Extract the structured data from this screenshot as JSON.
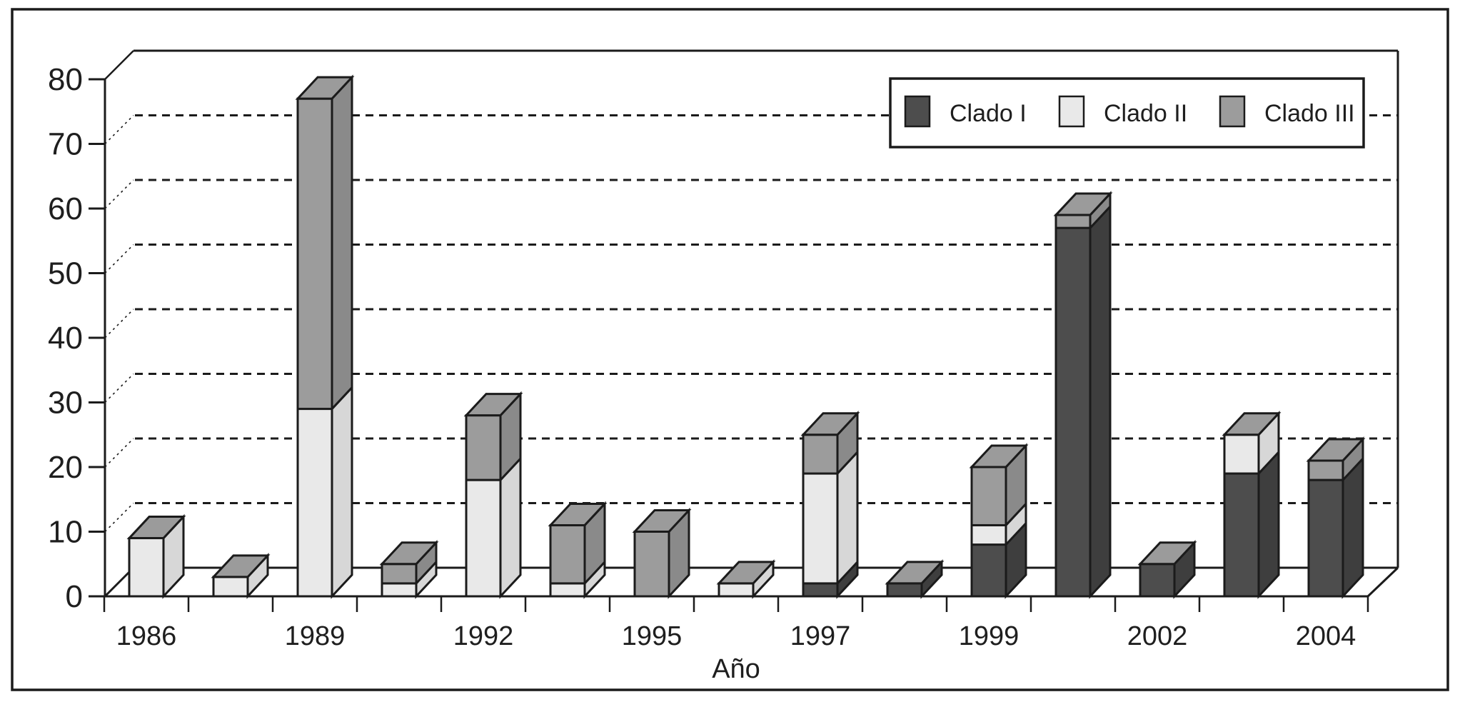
{
  "figure": {
    "background": "#ffffff",
    "border_color": "#1b1b1b"
  },
  "chart_data": {
    "type": "bar",
    "variant": "3d-stacked-bar",
    "title": "",
    "xlabel": "Año",
    "ylabel": "",
    "ylim": [
      0,
      80
    ],
    "ytick_step": 10,
    "grid": "dashed-horizontal-backwall",
    "legend_position": "top-right-inside",
    "categories": [
      "1986",
      "",
      "1989",
      "",
      "1992",
      "",
      "1995",
      "",
      "1997",
      "",
      "1999",
      "",
      "2002",
      "",
      "2004"
    ],
    "series": [
      {
        "name": "Clado I",
        "values": [
          0,
          0,
          0,
          0,
          0,
          0,
          0,
          0,
          2,
          2,
          8,
          57,
          5,
          19,
          18
        ]
      },
      {
        "name": "Clado II",
        "values": [
          9,
          3,
          29,
          2,
          18,
          2,
          0,
          2,
          17,
          0,
          3,
          0,
          0,
          6,
          0
        ]
      },
      {
        "name": "Clado III",
        "values": [
          0,
          0,
          48,
          3,
          10,
          9,
          10,
          0,
          6,
          0,
          9,
          2,
          0,
          0,
          3
        ]
      }
    ],
    "colors": {
      "front": {
        "Clado I": "#4d4d4d",
        "Clado II": "#e9e9e9",
        "Clado III": "#9c9c9c"
      },
      "side": {
        "Clado I": "#3e3e3e",
        "Clado II": "#d7d7d7",
        "Clado III": "#8a8a8a"
      },
      "top": "#9b9b9b",
      "outline": "#1b1b1b"
    }
  }
}
